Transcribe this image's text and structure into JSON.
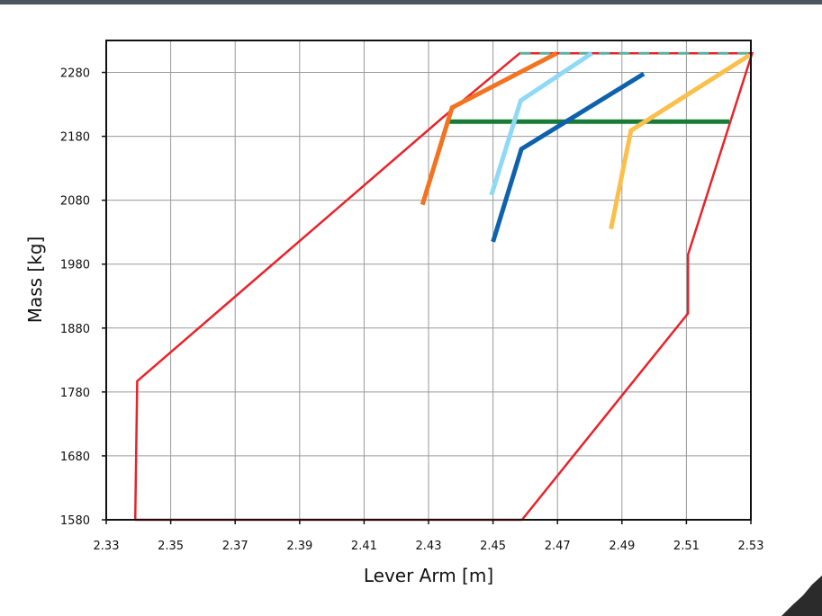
{
  "chart_data": {
    "type": "line",
    "title": "",
    "xlabel": "Lever Arm [m]",
    "ylabel": "Mass [kg]",
    "xlim": [
      2.33,
      2.53
    ],
    "ylim": [
      1580,
      2330
    ],
    "x_ticks": [
      "2.33",
      "2.35",
      "2.37",
      "2.39",
      "2.41",
      "2.43",
      "2.45",
      "2.47",
      "2.49",
      "2.51",
      "2.53"
    ],
    "y_ticks": [
      "1580",
      "1680",
      "1780",
      "1880",
      "1980",
      "2080",
      "2180",
      "2280"
    ],
    "grid": true,
    "legend": "none",
    "series": [
      {
        "color": "#e8232a",
        "style": "solid",
        "points": [
          [
            2.339,
            1580
          ],
          [
            2.459,
            1580
          ],
          [
            2.5105,
            1903
          ],
          [
            2.5105,
            1995
          ],
          [
            2.5304,
            2310
          ],
          [
            2.4583,
            2310
          ],
          [
            2.4343,
            2209
          ],
          [
            2.3396,
            1797
          ],
          [
            2.339,
            1580
          ]
        ]
      },
      {
        "color": "#5fb0a0",
        "style": "dashed",
        "points": [
          [
            2.4583,
            2310
          ],
          [
            2.5304,
            2310
          ]
        ]
      },
      {
        "color": "#1a7a38",
        "style": "solid",
        "points": [
          [
            2.4354,
            2203
          ],
          [
            2.5233,
            2203
          ]
        ]
      },
      {
        "color": "#f27320",
        "style": "solid",
        "points": [
          [
            2.4281,
            2073
          ],
          [
            2.4373,
            2225
          ],
          [
            2.4698,
            2310
          ]
        ]
      },
      {
        "color": "#8fd9f7",
        "style": "solid",
        "points": [
          [
            2.4495,
            2088
          ],
          [
            2.4586,
            2236
          ],
          [
            2.4807,
            2310
          ]
        ]
      },
      {
        "color": "#0d62ab",
        "style": "solid",
        "points": [
          [
            2.45,
            2015
          ],
          [
            2.4588,
            2160
          ],
          [
            2.4968,
            2278
          ]
        ]
      },
      {
        "color": "#fbc04b",
        "style": "solid",
        "points": [
          [
            2.4866,
            2035
          ],
          [
            2.4928,
            2189
          ],
          [
            2.5296,
            2307
          ]
        ]
      }
    ]
  }
}
